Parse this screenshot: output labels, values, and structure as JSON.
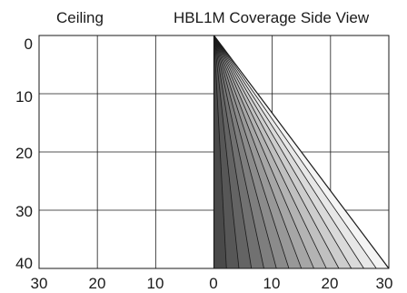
{
  "title": "HBL1M Coverage Side View",
  "header_left": "Ceiling",
  "axes": {
    "y_ticks": [
      "0",
      "10",
      "20",
      "30",
      "40"
    ],
    "x_ticks": [
      "30",
      "20",
      "10",
      "0",
      "10",
      "20",
      "30"
    ]
  },
  "coverage": {
    "apex_offset": 0,
    "max_reach": 30,
    "depth": 40,
    "wedge_count": 14,
    "shade_darkest": "#4a4a4a",
    "shade_lightest": "#f4f4f4"
  },
  "colors": {
    "frame": "#1a1a1a",
    "grid": "#1a1a1a",
    "background": "#ffffff"
  }
}
